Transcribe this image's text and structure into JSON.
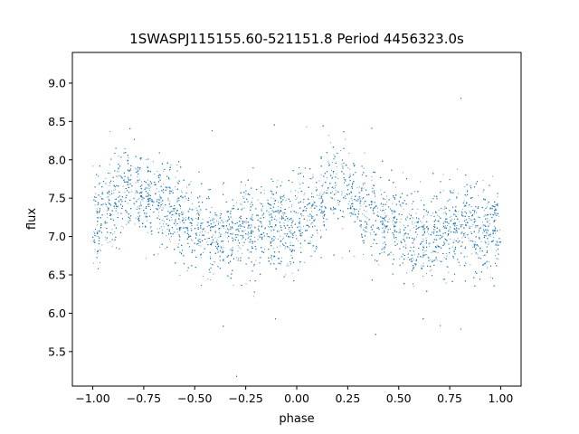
{
  "chart_data": {
    "type": "scatter",
    "title": "1SWASPJ115155.60-521151.8 Period 4456323.0s",
    "xlabel": "phase",
    "ylabel": "flux",
    "xlim": [
      -1.1,
      1.1
    ],
    "ylim": [
      5.05,
      9.4
    ],
    "xticks": [
      -1.0,
      -0.75,
      -0.5,
      -0.25,
      0.0,
      0.25,
      0.5,
      0.75,
      1.0
    ],
    "xtick_labels": [
      "−1.00",
      "−0.75",
      "−0.50",
      "−0.25",
      "0.00",
      "0.25",
      "0.50",
      "0.75",
      "1.00"
    ],
    "yticks": [
      5.5,
      6.0,
      6.5,
      7.0,
      7.5,
      8.0,
      8.5,
      9.0
    ],
    "ytick_labels": [
      "5.5",
      "6.0",
      "6.5",
      "7.0",
      "7.5",
      "8.0",
      "8.5",
      "9.0"
    ],
    "grid": false,
    "marker_color": "#1f77b4",
    "series": [
      {
        "phase_range": [
          -1.0,
          1.0
        ],
        "trend": {
          "phase": [
            0.0,
            0.05,
            0.1,
            0.15,
            0.2,
            0.25,
            0.3,
            0.35,
            0.4,
            0.45,
            0.5,
            0.55,
            0.6,
            0.65,
            0.7,
            0.75,
            0.8,
            0.85,
            0.9,
            0.95,
            1.0
          ],
          "flux": [
            7.15,
            7.3,
            7.45,
            7.6,
            7.65,
            7.6,
            7.5,
            7.4,
            7.3,
            7.2,
            7.1,
            7.05,
            7.0,
            7.0,
            7.05,
            7.1,
            7.1,
            7.15,
            7.1,
            7.1,
            7.15
          ]
        },
        "scatter_sd": 0.28,
        "n_points": 9000
      }
    ]
  }
}
